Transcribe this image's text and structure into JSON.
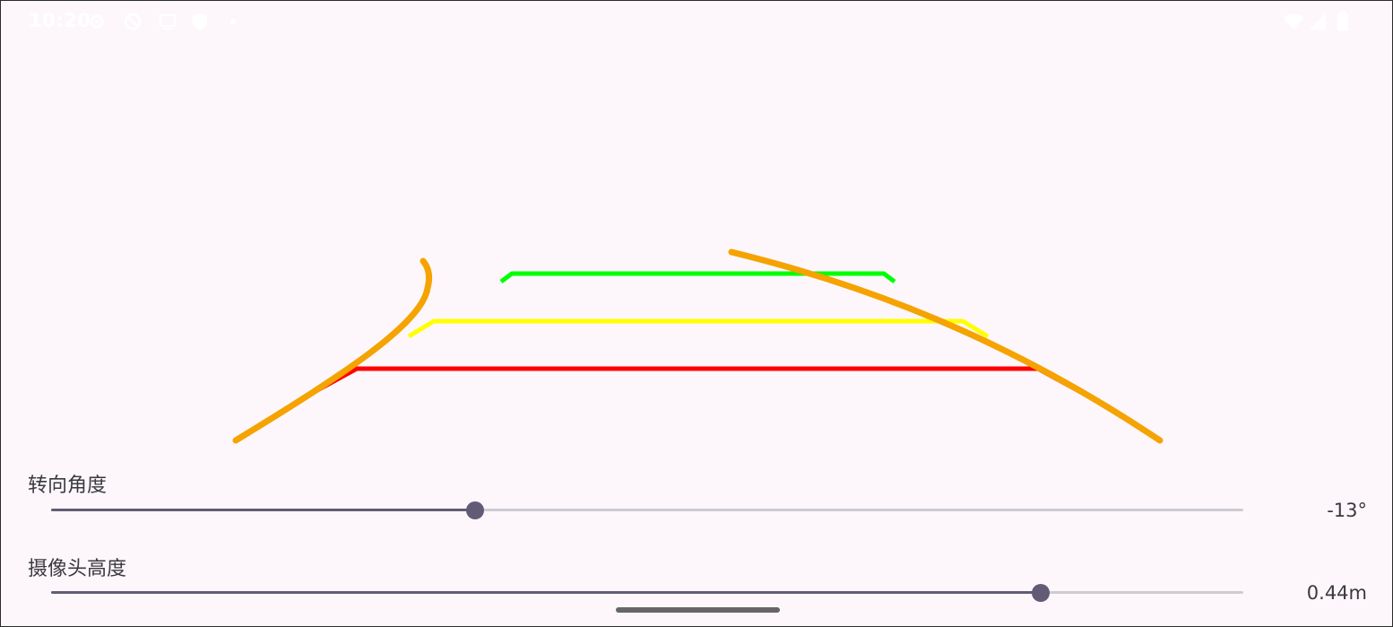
{
  "status_bar": {
    "time": "10:20",
    "icons": [
      "settings-icon",
      "dnd-off-icon",
      "cast-icon",
      "shield-icon",
      "dot-icon",
      "wifi-icon",
      "signal-icon",
      "battery-icon"
    ]
  },
  "guide_lines": {
    "colors": {
      "near": "#ff0000",
      "mid": "#ffff00",
      "far": "#00ff00",
      "trajectory": "#f5a300"
    }
  },
  "steering": {
    "label": "转向角度",
    "value": "-13°",
    "fraction": 0.356
  },
  "camera_height": {
    "label": "摄像头高度",
    "value": "0.44m",
    "fraction": 0.83
  },
  "colors": {
    "background": "#fdf7fc",
    "slider_active": "#625d73",
    "slider_inactive": "#cfcbd3",
    "text": "#3b3940"
  }
}
